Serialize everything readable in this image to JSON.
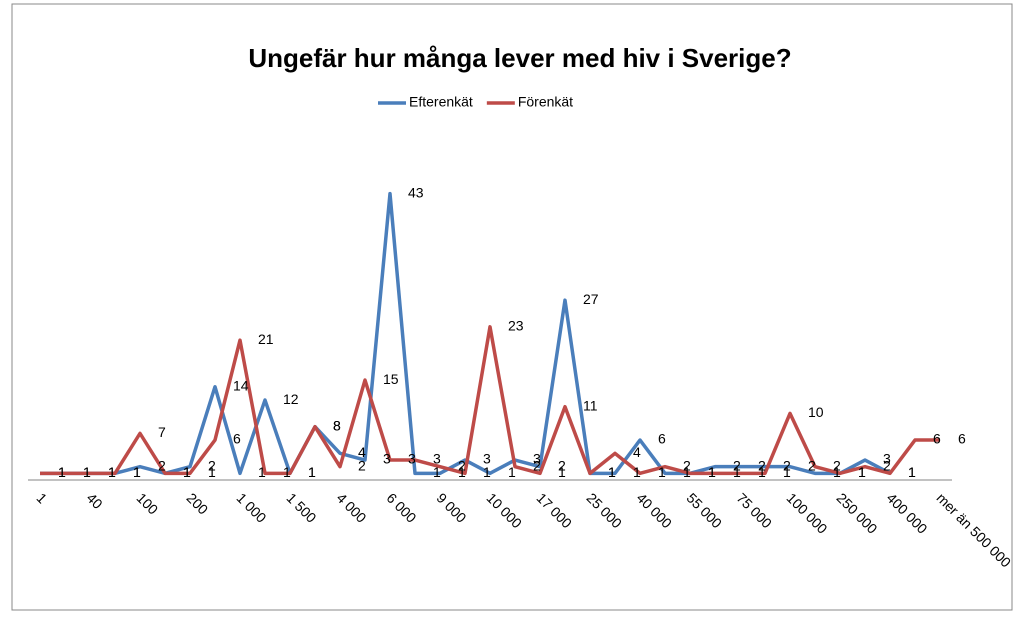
{
  "chart_data": {
    "type": "line",
    "title": "Ungefär hur många lever med hiv i Sverige?",
    "categories": [
      "1",
      null,
      "40",
      null,
      "100",
      null,
      "200",
      null,
      "1 000",
      null,
      "1 500",
      null,
      "4 000",
      null,
      "6 000",
      null,
      "9 000",
      null,
      "10 000",
      null,
      "17 000",
      null,
      "25 000",
      null,
      "40 000",
      null,
      "55 000",
      null,
      "75 000",
      null,
      "100 000",
      null,
      "250 000",
      null,
      "400 000",
      null,
      "mer än 500 000"
    ],
    "series": [
      {
        "name": "Efterenkät",
        "color": "#4a7ebb",
        "values": [
          1,
          1,
          1,
          1,
          2,
          1,
          2,
          14,
          1,
          12,
          1,
          8,
          4,
          3,
          43,
          1,
          1,
          3,
          1,
          3,
          2,
          27,
          1,
          1,
          6,
          1,
          1,
          2,
          2,
          2,
          2,
          1,
          1,
          3,
          1,
          null,
          null
        ]
      },
      {
        "name": "Förenkät",
        "color": "#be4b48",
        "values": [
          1,
          1,
          1,
          1,
          7,
          1,
          1,
          6,
          21,
          1,
          1,
          8,
          2,
          15,
          3,
          3,
          2,
          1,
          23,
          2,
          1,
          11,
          1,
          4,
          1,
          2,
          1,
          1,
          1,
          1,
          10,
          2,
          1,
          2,
          1,
          6,
          6
        ]
      }
    ],
    "ylim": [
      0,
      50
    ],
    "legend": "top"
  }
}
